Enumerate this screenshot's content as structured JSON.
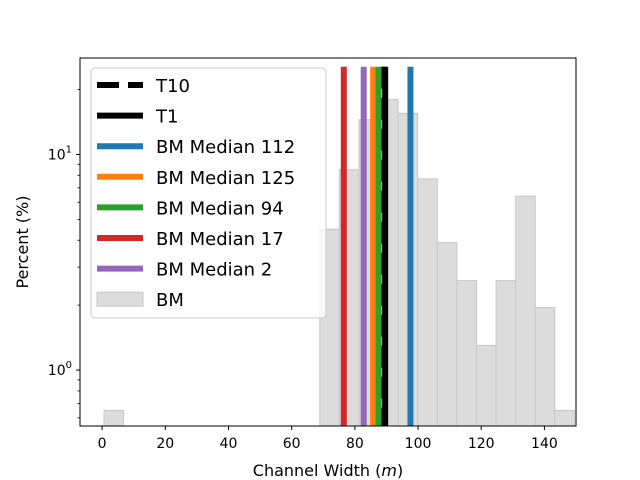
{
  "chart_data": {
    "type": "bar",
    "xlabel": "Channel Width",
    "xlabel_unit": "m",
    "ylabel": "Percent (%)",
    "x_ticks": [
      0,
      20,
      40,
      60,
      80,
      100,
      120,
      140
    ],
    "xlim": [
      -7,
      150
    ],
    "y_scale": "log",
    "ylim": [
      0.55,
      28
    ],
    "y_ticks": [
      {
        "value": 1,
        "base": "10",
        "exp": "0"
      },
      {
        "value": 10,
        "base": "10",
        "exp": "1"
      }
    ],
    "histogram": {
      "name": "BM",
      "color": "#dcdcdc",
      "edge_color": "#c8c8c8",
      "bin_width": 6.2,
      "bins": [
        {
          "start": 0.6,
          "value": 0.65
        },
        {
          "start": 68.9,
          "value": 4.5
        },
        {
          "start": 75.1,
          "value": 8.5
        },
        {
          "start": 81.3,
          "value": 14.5
        },
        {
          "start": 87.5,
          "value": 18.0
        },
        {
          "start": 93.7,
          "value": 15.5
        },
        {
          "start": 99.9,
          "value": 7.7
        },
        {
          "start": 106.1,
          "value": 3.9
        },
        {
          "start": 112.3,
          "value": 2.6
        },
        {
          "start": 118.5,
          "value": 1.3
        },
        {
          "start": 124.7,
          "value": 2.6
        },
        {
          "start": 130.9,
          "value": 6.4
        },
        {
          "start": 137.1,
          "value": 1.95
        },
        {
          "start": 143.3,
          "value": 0.65
        }
      ]
    },
    "vlines": [
      {
        "name": "T10",
        "x": 89.0,
        "color": "#000000",
        "style": "dashed"
      },
      {
        "name": "T1",
        "x": 89.6,
        "color": "#000000",
        "style": "solid"
      },
      {
        "name": "BM Median 112",
        "x": 97.6,
        "color": "#1f77b4",
        "style": "solid"
      },
      {
        "name": "BM Median 125",
        "x": 85.8,
        "color": "#ff7f0e",
        "style": "solid"
      },
      {
        "name": "BM Median 94",
        "x": 87.5,
        "color": "#2ca02c",
        "style": "solid"
      },
      {
        "name": "BM Median 17",
        "x": 76.5,
        "color": "#d62728",
        "style": "solid"
      },
      {
        "name": "BM Median 2",
        "x": 82.8,
        "color": "#9467bd",
        "style": "solid"
      }
    ],
    "vline_top": 25.5,
    "legend_position": "upper-left"
  }
}
